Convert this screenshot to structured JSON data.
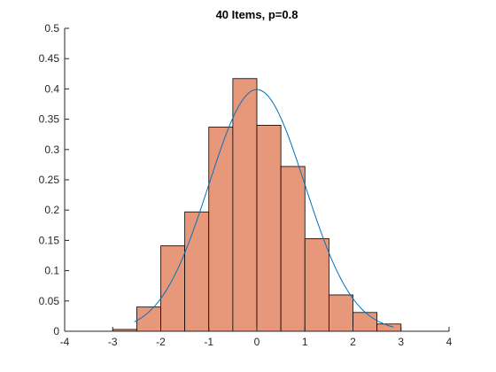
{
  "chart_data": {
    "type": "bar",
    "title": "40 Items, p=0.8",
    "xlabel": "",
    "ylabel": "",
    "xlim": [
      -4,
      4
    ],
    "ylim": [
      0,
      0.5
    ],
    "xticks": [
      -4,
      -3,
      -2,
      -1,
      0,
      1,
      2,
      3,
      4
    ],
    "yticks": [
      0,
      0.05,
      0.1,
      0.15,
      0.2,
      0.25,
      0.3,
      0.35,
      0.4,
      0.45,
      0.5
    ],
    "xtick_labels": [
      "-4",
      "-3",
      "-2",
      "-1",
      "0",
      "1",
      "2",
      "3",
      "4"
    ],
    "ytick_labels": [
      "0",
      "0.05",
      "0.1",
      "0.15",
      "0.2",
      "0.25",
      "0.3",
      "0.35",
      "0.4",
      "0.45",
      "0.5"
    ],
    "histogram": {
      "bin_edges": [
        -3.0,
        -2.5,
        -2.0,
        -1.5,
        -1.0,
        -0.5,
        0.0,
        0.5,
        1.0,
        1.5,
        2.0,
        2.5,
        3.0
      ],
      "values": [
        0.003,
        0.04,
        0.141,
        0.197,
        0.337,
        0.417,
        0.34,
        0.272,
        0.153,
        0.06,
        0.031,
        0.012
      ],
      "fill_color": "#E8987A",
      "edge_color": "#000000"
    },
    "density_curve": {
      "distribution": "standard normal",
      "x_range": [
        -2.55,
        2.85
      ],
      "color": "#0072BD"
    },
    "grid": false,
    "legend": "none"
  }
}
